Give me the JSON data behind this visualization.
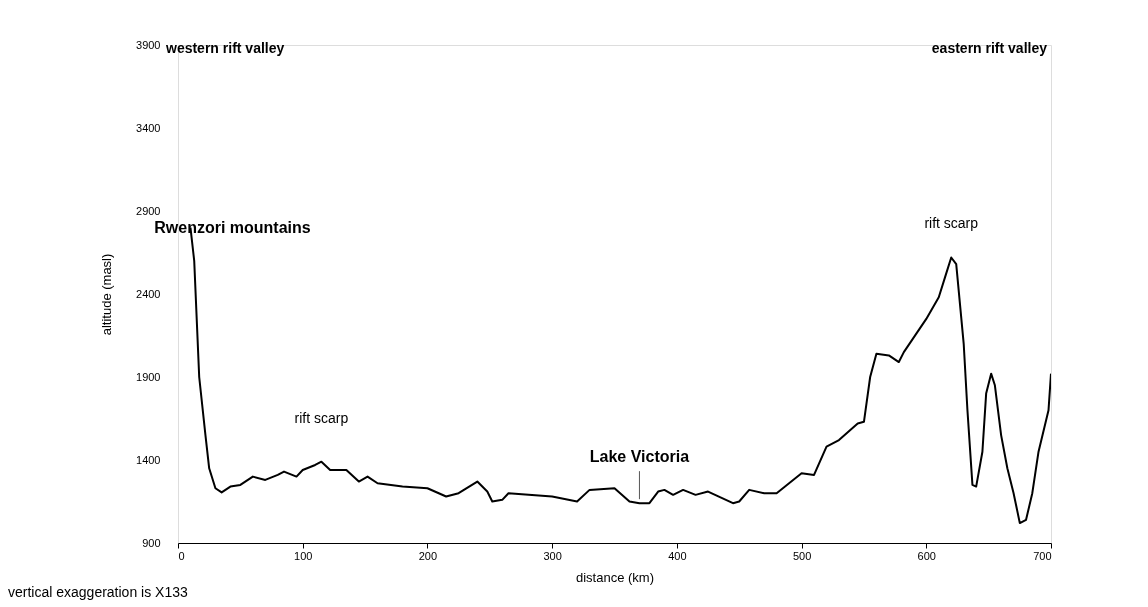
{
  "chart_data": {
    "type": "line",
    "xlabel": "distance (km)",
    "ylabel": "altitude (masl)",
    "xlim": [
      0,
      700
    ],
    "ylim": [
      900,
      3900
    ],
    "xticks": [
      0,
      100,
      200,
      300,
      400,
      500,
      600,
      700
    ],
    "yticks": [
      900,
      1400,
      1900,
      2400,
      2900,
      3400,
      3900
    ],
    "grid": false,
    "marker": "none",
    "line_style": "solid",
    "series": [
      {
        "color": "#000000",
        "x": [
          10,
          13,
          17,
          22,
          25,
          30,
          35,
          42,
          50,
          60,
          70,
          80,
          85,
          95,
          100,
          110,
          115,
          122,
          135,
          145,
          152,
          160,
          180,
          200,
          215,
          225,
          240,
          248,
          252,
          260,
          265,
          300,
          320,
          330,
          350,
          362,
          370,
          378,
          385,
          390,
          397,
          405,
          415,
          425,
          445,
          450,
          458,
          470,
          480,
          500,
          510,
          520,
          530,
          545,
          550,
          555,
          560,
          570,
          578,
          582,
          600,
          610,
          615,
          620,
          624,
          630,
          633,
          637,
          640,
          645,
          648,
          652,
          655,
          660,
          665,
          670,
          675,
          680,
          685,
          690,
          698,
          700
        ],
        "values": [
          2800,
          2600,
          1900,
          1550,
          1350,
          1230,
          1205,
          1240,
          1250,
          1300,
          1280,
          1310,
          1330,
          1300,
          1340,
          1370,
          1390,
          1340,
          1340,
          1270,
          1300,
          1260,
          1240,
          1230,
          1180,
          1200,
          1270,
          1210,
          1150,
          1160,
          1200,
          1180,
          1150,
          1220,
          1230,
          1150,
          1140,
          1140,
          1210,
          1220,
          1190,
          1220,
          1190,
          1210,
          1140,
          1150,
          1220,
          1200,
          1200,
          1320,
          1310,
          1480,
          1520,
          1620,
          1630,
          1900,
          2040,
          2030,
          1990,
          2050,
          2250,
          2380,
          2500,
          2620,
          2580,
          2100,
          1700,
          1250,
          1240,
          1450,
          1800,
          1920,
          1850,
          1550,
          1350,
          1200,
          1020,
          1040,
          1200,
          1450,
          1700,
          1920
        ]
      }
    ],
    "annotations": [
      "western rift valley",
      "eastern rift valley",
      "vertical exaggeration is X133",
      {
        "text": "Rwenzori mountains",
        "x": 10,
        "y": 2800
      },
      {
        "text": "rift scarp",
        "x": 115,
        "y": 1390
      },
      {
        "text": "Lake Victoria",
        "x": 370,
        "y": 1140
      },
      {
        "text": "rift scarp",
        "x": 620,
        "y": 2620
      }
    ]
  }
}
